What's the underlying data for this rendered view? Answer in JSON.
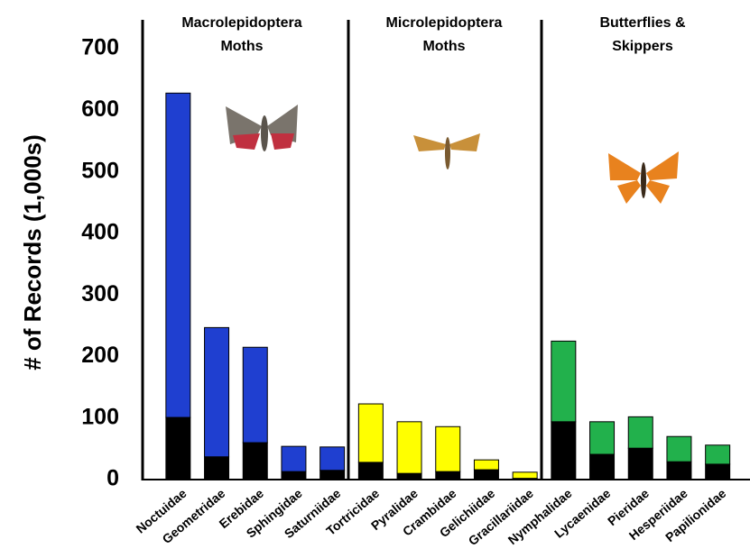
{
  "chart_data": {
    "type": "stacked-bar",
    "y_label": "# of Records (1,000s)",
    "groups": [
      [
        "Macrolepidoptera",
        "Moths"
      ],
      [
        "Microlepidoptera",
        "Moths"
      ],
      [
        "Butterflies &",
        "Skippers"
      ]
    ],
    "categories": [
      "Noctuidae",
      "Geometridae",
      "Erebidae",
      "Sphingidae",
      "Saturniidae",
      "Tortricidae",
      "Pyralidae",
      "Crambidae",
      "Gelichiidae",
      "Gracillariidae",
      "Nymphalidae",
      "Lycaenidae",
      "Pieridae",
      "Hesperiidae",
      "Papilionidae"
    ],
    "series": [
      {
        "color": "#000000",
        "values": [
          101,
          37,
          60,
          13,
          15,
          28,
          10,
          13,
          16,
          2,
          94,
          41,
          51,
          29,
          25
        ]
      },
      {
        "colors": [
          "#1f3fd0",
          "#1f3fd0",
          "#1f3fd0",
          "#1f3fd0",
          "#1f3fd0",
          "#ffff00",
          "#ffff00",
          "#ffff00",
          "#ffff00",
          "#ffff00",
          "#22b14c",
          "#22b14c",
          "#22b14c",
          "#22b14c",
          "#22b14c"
        ],
        "values": [
          527,
          210,
          155,
          41,
          38,
          95,
          84,
          73,
          16,
          10,
          131,
          53,
          51,
          41,
          31
        ]
      }
    ],
    "ylim": [
      0,
      750
    ],
    "yticks": [
      0,
      100,
      200,
      300,
      400,
      500,
      600,
      700
    ]
  }
}
